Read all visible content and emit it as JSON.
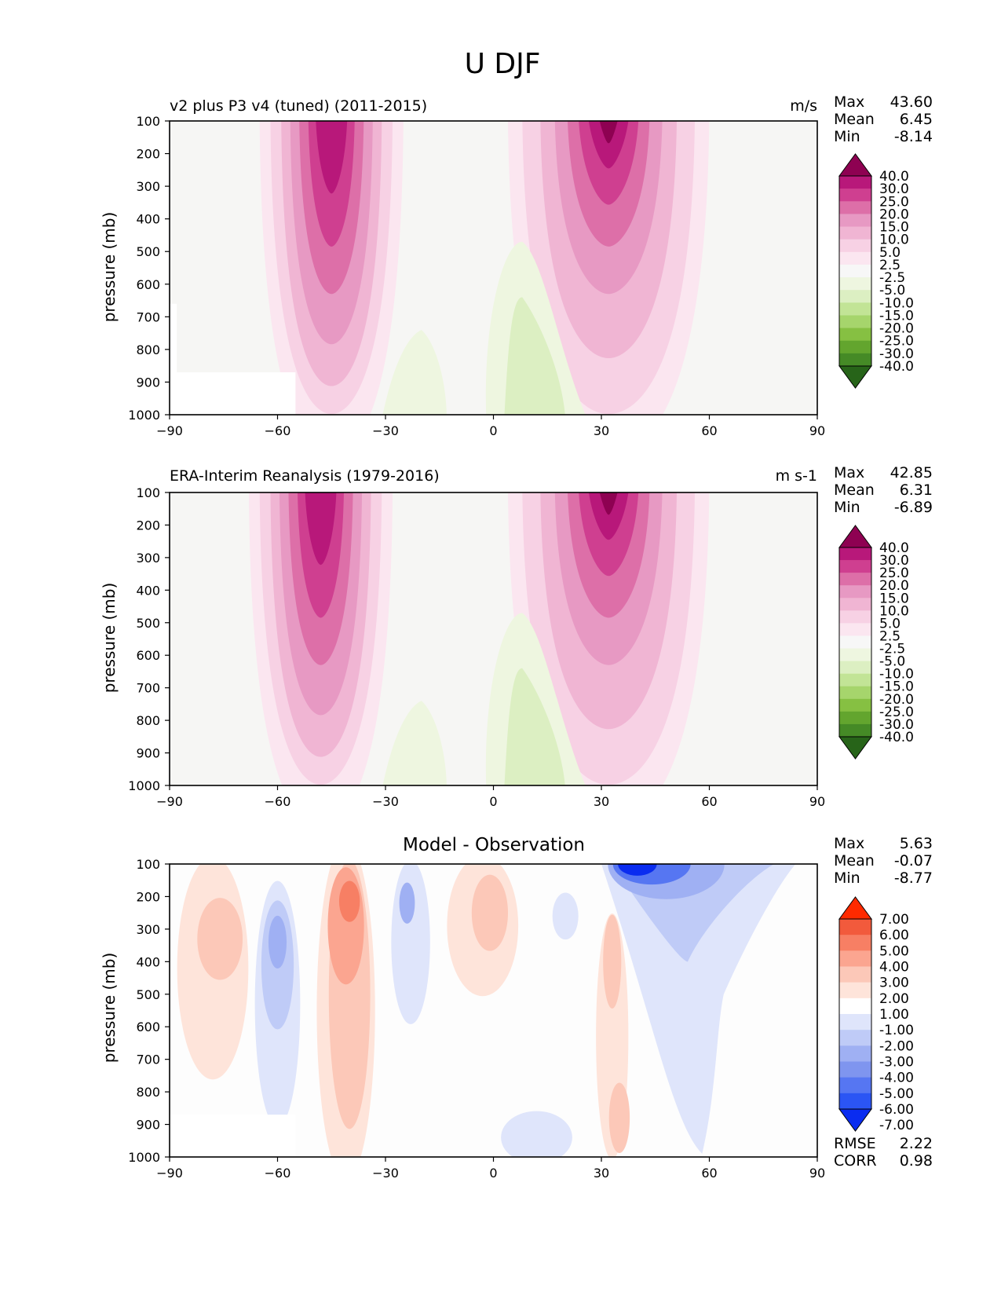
{
  "figure": {
    "title": "U DJF"
  },
  "chart_data": [
    {
      "type": "heatmap",
      "subtype": "filled-contour",
      "panel": "model",
      "title_left": "v2 plus P3 v4 (tuned) (2011-2015)",
      "title_right": "m/s",
      "xlabel": "",
      "ylabel": "pressure (mb)",
      "xlim": [
        -90,
        90
      ],
      "ylim": [
        1000,
        100
      ],
      "x_ticks": [
        "−90",
        "−60",
        "−30",
        "0",
        "30",
        "60",
        "90"
      ],
      "y_ticks": [
        "100",
        "200",
        "300",
        "400",
        "500",
        "600",
        "700",
        "800",
        "900",
        "1000"
      ],
      "stats": [
        {
          "label": "Max",
          "value": "43.60"
        },
        {
          "label": "Mean",
          "value": "6.45"
        },
        {
          "label": "Min",
          "value": "-8.14"
        }
      ],
      "colorbar_labels": [
        "40.0",
        "30.0",
        "25.0",
        "20.0",
        "15.0",
        "10.0",
        "5.0",
        "2.5",
        "-2.5",
        "-5.0",
        "-10.0",
        "-15.0",
        "-20.0",
        "-25.0",
        "-30.0",
        "-40.0"
      ],
      "colormap": "PiYG",
      "jets": [
        {
          "lat": -45,
          "p": 250,
          "max": 35
        },
        {
          "lat": 32,
          "p": 200,
          "max": 43.6
        }
      ]
    },
    {
      "type": "heatmap",
      "subtype": "filled-contour",
      "panel": "observation",
      "title_left": "ERA-Interim Reanalysis (1979-2016)",
      "title_right": "m s-1",
      "xlabel": "",
      "ylabel": "pressure (mb)",
      "xlim": [
        -90,
        90
      ],
      "ylim": [
        1000,
        100
      ],
      "x_ticks": [
        "−90",
        "−60",
        "−30",
        "0",
        "30",
        "60",
        "90"
      ],
      "y_ticks": [
        "100",
        "200",
        "300",
        "400",
        "500",
        "600",
        "700",
        "800",
        "900",
        "1000"
      ],
      "stats": [
        {
          "label": "Max",
          "value": "42.85"
        },
        {
          "label": "Mean",
          "value": "6.31"
        },
        {
          "label": "Min",
          "value": "-6.89"
        }
      ],
      "colorbar_labels": [
        "40.0",
        "30.0",
        "25.0",
        "20.0",
        "15.0",
        "10.0",
        "5.0",
        "2.5",
        "-2.5",
        "-5.0",
        "-10.0",
        "-15.0",
        "-20.0",
        "-25.0",
        "-30.0",
        "-40.0"
      ],
      "colormap": "PiYG",
      "jets": [
        {
          "lat": -48,
          "p": 250,
          "max": 34
        },
        {
          "lat": 32,
          "p": 200,
          "max": 42.85
        }
      ]
    },
    {
      "type": "heatmap",
      "subtype": "filled-contour",
      "panel": "difference",
      "title_center": "Model - Observation",
      "xlabel": "",
      "ylabel": "pressure (mb)",
      "xlim": [
        -90,
        90
      ],
      "ylim": [
        1000,
        100
      ],
      "x_ticks": [
        "−90",
        "−60",
        "−30",
        "0",
        "30",
        "60",
        "90"
      ],
      "y_ticks": [
        "100",
        "200",
        "300",
        "400",
        "500",
        "600",
        "700",
        "800",
        "900",
        "1000"
      ],
      "stats": [
        {
          "label": "Max",
          "value": "5.63"
        },
        {
          "label": "Mean",
          "value": "-0.07"
        },
        {
          "label": "Min",
          "value": "-8.77"
        }
      ],
      "extra_stats": [
        {
          "label": "RMSE",
          "value": "2.22"
        },
        {
          "label": "CORR",
          "value": "0.98"
        }
      ],
      "colorbar_labels": [
        "7.00",
        "6.00",
        "5.00",
        "4.00",
        "3.00",
        "2.00",
        "1.00",
        "-1.00",
        "-2.00",
        "-3.00",
        "-4.00",
        "-5.00",
        "-6.00",
        "-7.00"
      ],
      "colormap": "bwr"
    }
  ],
  "colors": {
    "pos_fill": [
      "#fbe6f0",
      "#f7d1e4",
      "#f0b5d3",
      "#e799c3",
      "#dd6fa8",
      "#cf3f90",
      "#b8187a",
      "#8e0152"
    ],
    "neg_fill": [
      "#eef6e0",
      "#dcefc2",
      "#c2e496",
      "#a6d56c",
      "#86c042",
      "#63a52e",
      "#458a26",
      "#276419"
    ],
    "neutral": "#f6f6f4",
    "diff_pos": [
      "#fee4da",
      "#fcc8b8",
      "#fba590",
      "#f77f64",
      "#f25a3c",
      "#ff2a00"
    ],
    "diff_neg": [
      "#dfe5fb",
      "#bfcbf7",
      "#9fb0f3",
      "#7f95ef",
      "#5676f2",
      "#2b55f4",
      "#0a2cf0"
    ]
  }
}
